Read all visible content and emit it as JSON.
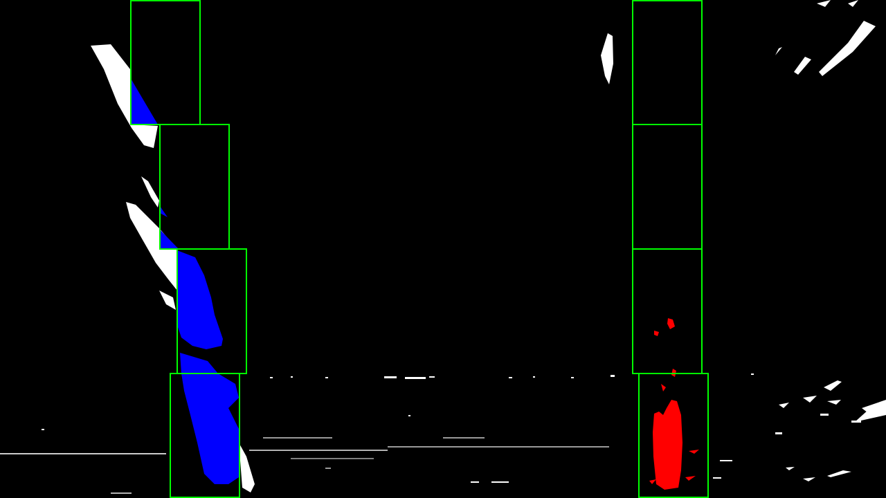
{
  "image": {
    "kind": "binary bird's-eye lane-detection visualization with sliding windows",
    "background_color": "#000000"
  },
  "colors": {
    "raw_pixels": "#ffffff",
    "left_lane_pixels": "#0000ff",
    "right_lane_pixels": "#ff0000",
    "search_windows": "#00ff00"
  },
  "lanes": {
    "left": {
      "window_count": 4,
      "pixel_color_name": "blue"
    },
    "right": {
      "window_count": 4,
      "pixel_color_name": "red"
    }
  }
}
